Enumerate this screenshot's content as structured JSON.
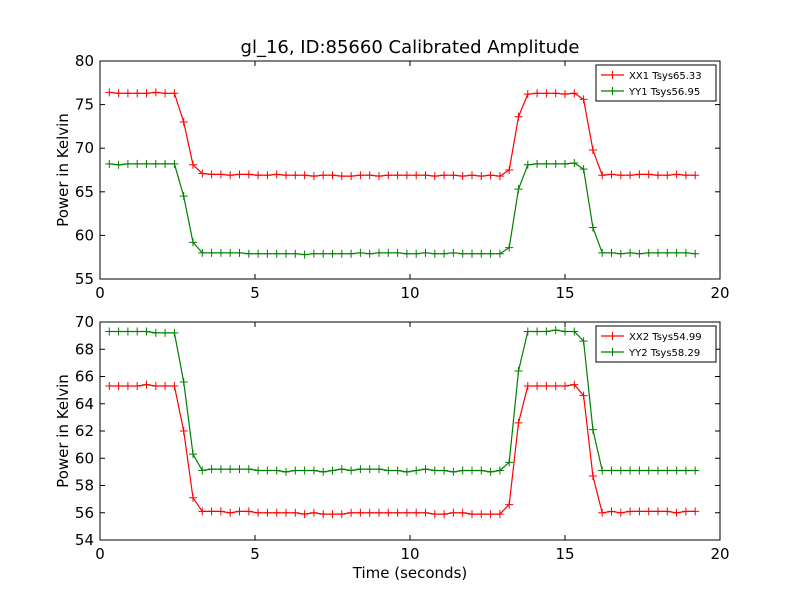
{
  "title": "gl_16, ID:85660 Calibrated Amplitude",
  "chart_data": [
    {
      "type": "line",
      "ylabel": "Power in Kelvin",
      "xlabel": "",
      "xlim": [
        0,
        20
      ],
      "ylim": [
        55,
        80
      ],
      "xticks": [
        0,
        5,
        10,
        15,
        20
      ],
      "yticks": [
        55,
        60,
        65,
        70,
        75,
        80
      ],
      "grid": false,
      "legend_position": "top-right",
      "x": [
        0.3,
        0.6,
        0.9,
        1.2,
        1.5,
        1.8,
        2.1,
        2.4,
        2.7,
        3.0,
        3.3,
        3.6,
        3.9,
        4.2,
        4.5,
        4.8,
        5.1,
        5.4,
        5.7,
        6.0,
        6.3,
        6.6,
        6.9,
        7.2,
        7.5,
        7.8,
        8.1,
        8.4,
        8.7,
        9.0,
        9.3,
        9.6,
        9.9,
        10.2,
        10.5,
        10.8,
        11.1,
        11.4,
        11.7,
        12.0,
        12.3,
        12.6,
        12.9,
        13.2,
        13.5,
        13.8,
        14.1,
        14.4,
        14.7,
        15.0,
        15.3,
        15.6,
        15.9,
        16.2,
        16.5,
        16.8,
        17.1,
        17.4,
        17.7,
        18.0,
        18.3,
        18.6,
        18.9,
        19.2
      ],
      "series": [
        {
          "name": "XX1 Tsys65.33",
          "color": "#ff0000",
          "values": [
            76.4,
            76.3,
            76.3,
            76.3,
            76.3,
            76.4,
            76.3,
            76.3,
            73.0,
            68.1,
            67.1,
            67.0,
            67.0,
            66.9,
            67.0,
            67.0,
            66.9,
            66.9,
            67.0,
            66.9,
            66.9,
            66.9,
            66.8,
            66.9,
            66.9,
            66.8,
            66.8,
            66.9,
            66.9,
            66.8,
            66.9,
            66.9,
            66.9,
            66.9,
            66.9,
            66.8,
            66.9,
            66.9,
            66.8,
            66.9,
            66.8,
            66.9,
            66.8,
            67.5,
            73.6,
            76.2,
            76.3,
            76.3,
            76.3,
            76.2,
            76.3,
            75.6,
            69.8,
            66.9,
            67.0,
            66.9,
            66.9,
            67.0,
            67.0,
            66.9,
            66.9,
            67.0,
            66.9,
            66.9
          ]
        },
        {
          "name": "YY1 Tsys56.95",
          "color": "#008000",
          "values": [
            68.2,
            68.1,
            68.2,
            68.2,
            68.2,
            68.2,
            68.2,
            68.2,
            64.5,
            59.2,
            58.0,
            58.0,
            58.0,
            58.0,
            58.0,
            57.9,
            57.9,
            57.9,
            57.9,
            57.9,
            57.9,
            57.8,
            57.9,
            57.9,
            57.9,
            57.9,
            57.9,
            58.0,
            57.9,
            58.0,
            58.0,
            58.0,
            57.9,
            57.9,
            58.0,
            57.9,
            57.9,
            58.0,
            57.9,
            57.9,
            57.9,
            57.9,
            57.9,
            58.6,
            65.3,
            68.1,
            68.2,
            68.2,
            68.2,
            68.2,
            68.3,
            67.6,
            60.9,
            58.0,
            58.0,
            57.9,
            58.0,
            57.9,
            58.0,
            58.0,
            58.0,
            58.0,
            58.0,
            57.9
          ]
        }
      ]
    },
    {
      "type": "line",
      "ylabel": "Power in Kelvin",
      "xlabel": "Time (seconds)",
      "xlim": [
        0,
        20
      ],
      "ylim": [
        54,
        70
      ],
      "xticks": [
        0,
        5,
        10,
        15,
        20
      ],
      "yticks": [
        54,
        56,
        58,
        60,
        62,
        64,
        66,
        68,
        70
      ],
      "grid": false,
      "legend_position": "top-right",
      "x": [
        0.3,
        0.6,
        0.9,
        1.2,
        1.5,
        1.8,
        2.1,
        2.4,
        2.7,
        3.0,
        3.3,
        3.6,
        3.9,
        4.2,
        4.5,
        4.8,
        5.1,
        5.4,
        5.7,
        6.0,
        6.3,
        6.6,
        6.9,
        7.2,
        7.5,
        7.8,
        8.1,
        8.4,
        8.7,
        9.0,
        9.3,
        9.6,
        9.9,
        10.2,
        10.5,
        10.8,
        11.1,
        11.4,
        11.7,
        12.0,
        12.3,
        12.6,
        12.9,
        13.2,
        13.5,
        13.8,
        14.1,
        14.4,
        14.7,
        15.0,
        15.3,
        15.6,
        15.9,
        16.2,
        16.5,
        16.8,
        17.1,
        17.4,
        17.7,
        18.0,
        18.3,
        18.6,
        18.9,
        19.2
      ],
      "series": [
        {
          "name": "XX2 Tsys54.99",
          "color": "#ff0000",
          "values": [
            65.3,
            65.3,
            65.3,
            65.3,
            65.4,
            65.3,
            65.3,
            65.3,
            62.0,
            57.1,
            56.1,
            56.1,
            56.1,
            56.0,
            56.1,
            56.1,
            56.0,
            56.0,
            56.0,
            56.0,
            56.0,
            55.9,
            56.0,
            55.9,
            55.9,
            55.9,
            56.0,
            56.0,
            56.0,
            56.0,
            56.0,
            56.0,
            56.0,
            56.0,
            56.0,
            55.9,
            55.9,
            56.0,
            56.0,
            55.9,
            55.9,
            55.9,
            55.9,
            56.6,
            62.6,
            65.3,
            65.3,
            65.3,
            65.3,
            65.3,
            65.4,
            64.6,
            58.7,
            56.0,
            56.1,
            56.0,
            56.1,
            56.1,
            56.1,
            56.1,
            56.1,
            56.0,
            56.1,
            56.1
          ]
        },
        {
          "name": "YY2 Tsys58.29",
          "color": "#008000",
          "values": [
            69.3,
            69.3,
            69.3,
            69.3,
            69.3,
            69.2,
            69.2,
            69.2,
            65.6,
            60.3,
            59.1,
            59.2,
            59.2,
            59.2,
            59.2,
            59.2,
            59.1,
            59.1,
            59.1,
            59.0,
            59.1,
            59.1,
            59.1,
            59.0,
            59.1,
            59.2,
            59.1,
            59.2,
            59.2,
            59.2,
            59.1,
            59.1,
            59.0,
            59.1,
            59.2,
            59.1,
            59.1,
            59.0,
            59.1,
            59.1,
            59.1,
            59.0,
            59.1,
            59.7,
            66.4,
            69.3,
            69.3,
            69.3,
            69.4,
            69.3,
            69.3,
            68.6,
            62.1,
            59.1,
            59.1,
            59.1,
            59.1,
            59.1,
            59.1,
            59.1,
            59.1,
            59.1,
            59.1,
            59.1
          ]
        }
      ]
    }
  ]
}
